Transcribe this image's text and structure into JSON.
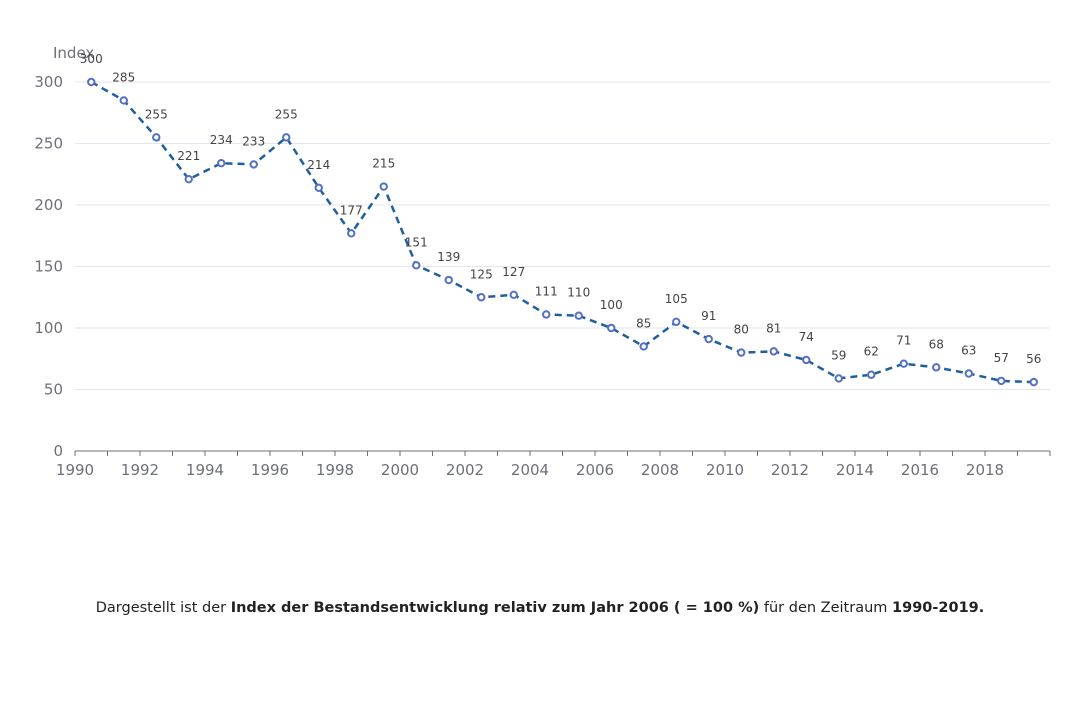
{
  "chart_data": {
    "type": "line",
    "title": "",
    "xlabel": "",
    "ylabel": "Index",
    "ylim": [
      0,
      300
    ],
    "yticks": [
      0,
      50,
      100,
      150,
      200,
      250,
      300
    ],
    "xticks": [
      1990,
      1992,
      1994,
      1996,
      1998,
      2000,
      2002,
      2004,
      2006,
      2008,
      2010,
      2012,
      2014,
      2016,
      2018
    ],
    "grid": true,
    "legend": "none",
    "line_style": "dashed",
    "color": "#1f5fa0",
    "marker_color": "#5470c6",
    "x": [
      1990,
      1991,
      1992,
      1993,
      1994,
      1995,
      1996,
      1997,
      1998,
      1999,
      2000,
      2001,
      2002,
      2003,
      2004,
      2005,
      2006,
      2007,
      2008,
      2009,
      2010,
      2011,
      2012,
      2013,
      2014,
      2015,
      2016,
      2017,
      2018,
      2019
    ],
    "values": [
      300,
      285,
      255,
      221,
      234,
      233,
      255,
      214,
      177,
      215,
      151,
      139,
      125,
      127,
      111,
      110,
      100,
      85,
      105,
      91,
      80,
      81,
      74,
      59,
      62,
      71,
      68,
      63,
      57,
      56
    ]
  },
  "caption": {
    "part1": "Dargestellt ist der ",
    "bold1": "Index der Bestandsentwicklung relativ zum Jahr 2006 ( = 100 %)",
    "part2": " für den Zeitraum ",
    "bold2": "1990-2019."
  }
}
